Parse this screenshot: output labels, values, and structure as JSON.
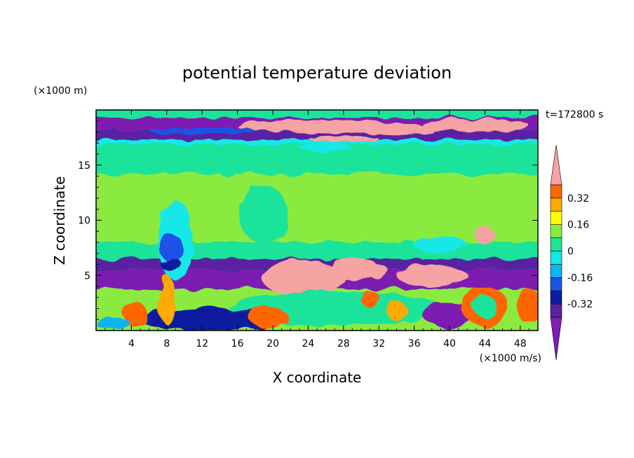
{
  "chart_data": {
    "type": "heatmap",
    "title": "potential temperature deviation",
    "xlabel": "X coordinate",
    "ylabel": "Z coordinate",
    "x_unit": "(×1000 m/s)",
    "y_unit": "(×1000 m)",
    "time_label": "t=172800 s",
    "xlim": [
      0,
      50
    ],
    "ylim": [
      0,
      20
    ],
    "x_ticks": [
      4,
      8,
      12,
      16,
      20,
      24,
      28,
      32,
      36,
      40,
      44,
      48
    ],
    "y_ticks": [
      5,
      10,
      15
    ],
    "colorbar": {
      "levels": [
        -0.48,
        -0.4,
        -0.32,
        -0.24,
        -0.16,
        -0.08,
        0,
        0.08,
        0.16,
        0.24,
        0.32,
        0.4,
        0.48
      ],
      "labels": [
        "0.32",
        "0.16",
        "0",
        "-0.16",
        "-0.32"
      ],
      "label_values": [
        0.32,
        0.16,
        0,
        -0.16,
        -0.32
      ],
      "colors": [
        "#7d1fb0",
        "#5a22a3",
        "#0a1f9e",
        "#1b53e6",
        "#0cb4f0",
        "#12e8e8",
        "#1ee39a",
        "#8bea40",
        "#ffff00",
        "#ffaa00",
        "#ff6600",
        "#ff1f1f",
        "#f5a3a3"
      ]
    }
  }
}
